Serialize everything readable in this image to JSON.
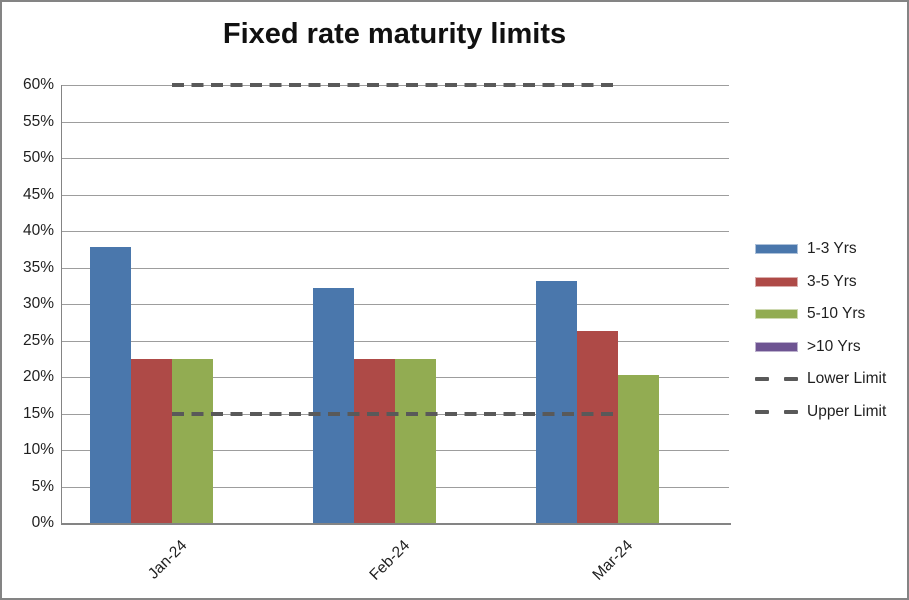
{
  "chart_data": {
    "type": "bar",
    "title": "Fixed rate maturity limits",
    "categories": [
      "Jan-24",
      "Feb-24",
      "Mar-24"
    ],
    "series": [
      {
        "name": "1-3 Yrs",
        "color": "#4A77AC",
        "values": [
          37.8,
          32.2,
          33.2
        ]
      },
      {
        "name": "3-5 Yrs",
        "color": "#AE4A47",
        "values": [
          22.5,
          22.5,
          26.3
        ]
      },
      {
        "name": "5-10 Yrs",
        "color": "#92AC52",
        "values": [
          22.5,
          22.5,
          20.3
        ]
      },
      {
        "name": ">10 Yrs",
        "color": "#6E5492",
        "values": [
          0,
          0,
          0
        ]
      }
    ],
    "limit_lines": [
      {
        "name": "Lower Limit",
        "value": 15,
        "color": "#595959",
        "style": "dashed"
      },
      {
        "name": "Upper Limit",
        "value": 60,
        "color": "#595959",
        "style": "dashed"
      }
    ],
    "ylim": [
      0,
      60
    ],
    "ytick_step": 5,
    "ytick_labels": [
      "0%",
      "5%",
      "10%",
      "15%",
      "20%",
      "25%",
      "30%",
      "35%",
      "40%",
      "45%",
      "50%",
      "55%",
      "60%"
    ],
    "ytick_format": "percent",
    "grid": true,
    "legend_position": "right"
  },
  "colors": {
    "gridline": "#9D9D9D",
    "axis": "#848484",
    "text": "#1F1F1F",
    "dash": "#595959",
    "background": "#FFFFFF",
    "border": "#848484"
  }
}
